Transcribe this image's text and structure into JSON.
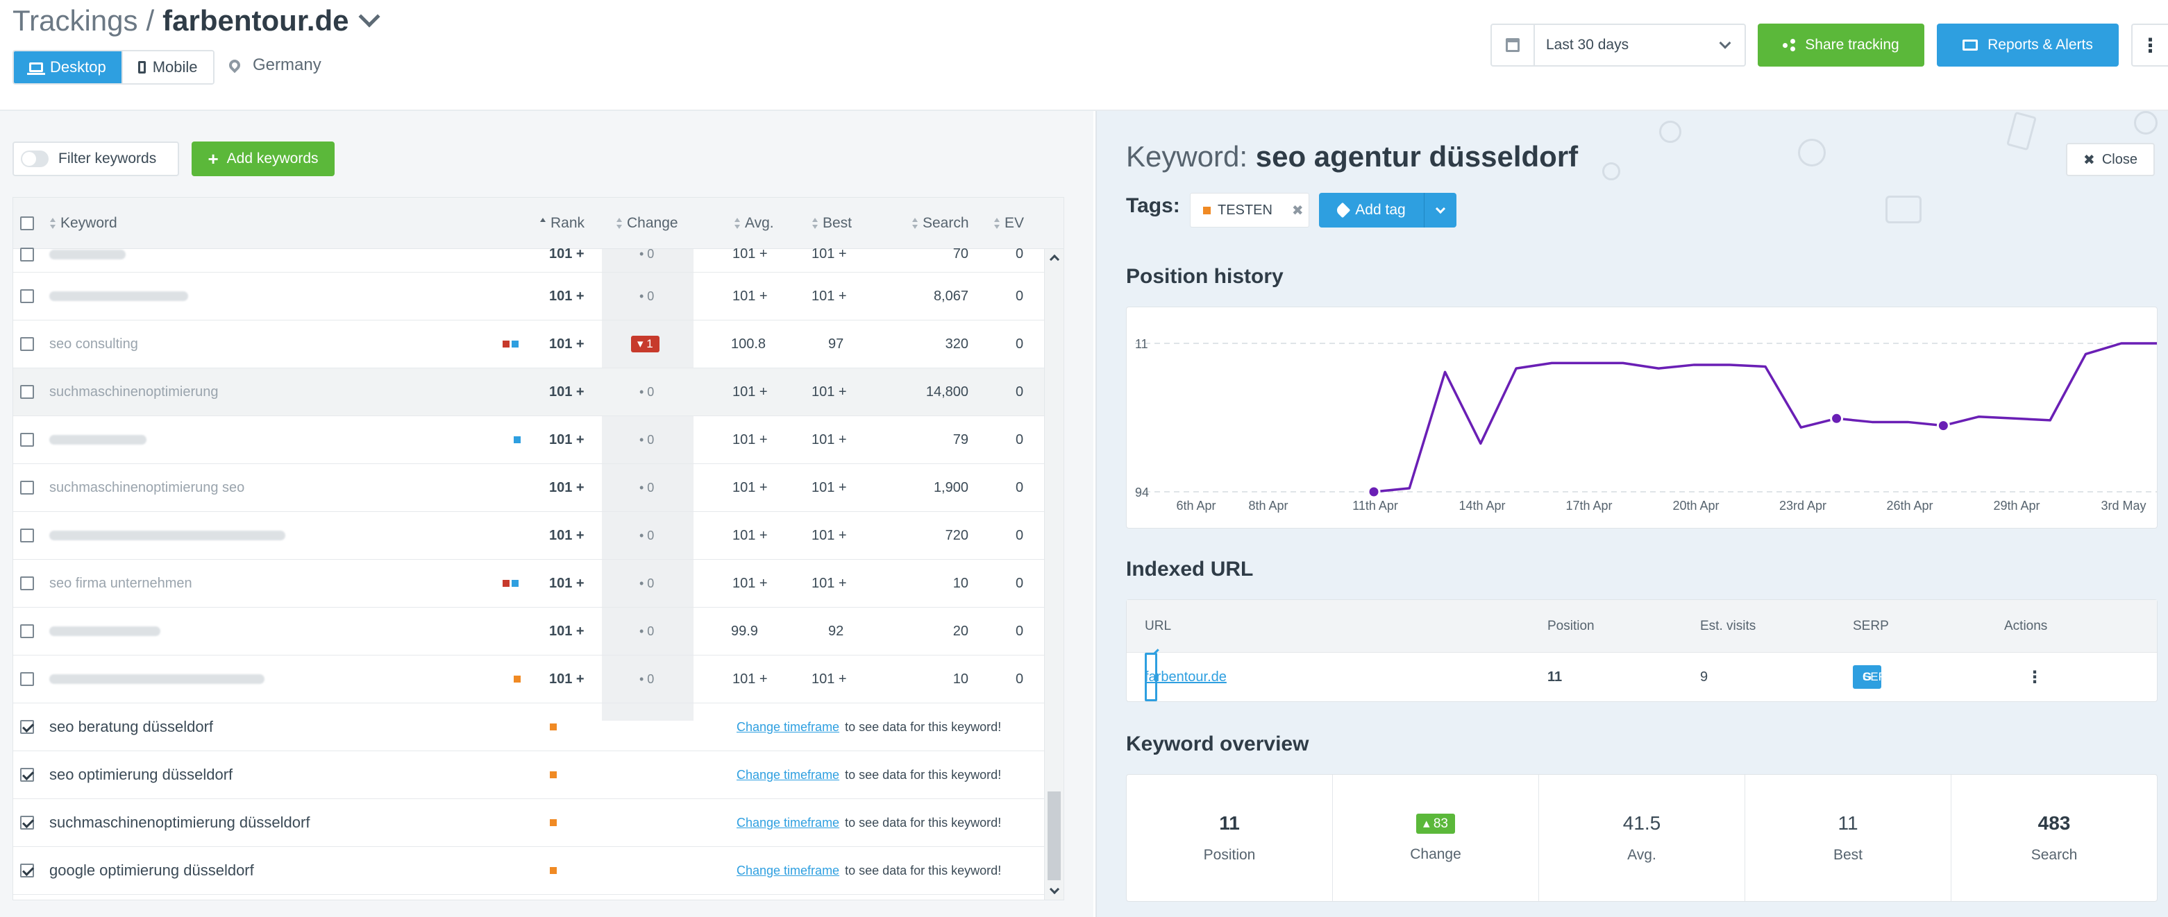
{
  "header": {
    "breadcrumb_root": "Trackings",
    "breadcrumb_sep": "/",
    "domain": "farbentour.de",
    "devices": [
      "Desktop",
      "Mobile"
    ],
    "location": "Germany",
    "date_range": "Last 30 days",
    "share_label": "Share tracking",
    "reports_label": "Reports & Alerts",
    "more_label": "⋮"
  },
  "toolbar": {
    "filter_label": "Filter keywords",
    "add_label": "Add keywords"
  },
  "table": {
    "columns": [
      "Keyword",
      "Rank",
      "Change",
      "Avg.",
      "Best",
      "Search",
      "EV"
    ],
    "rows": [
      {
        "keyword": "",
        "rank": "101 +",
        "change": "• 0",
        "avg": "101 +",
        "best": "101 +",
        "search": "70",
        "ev": "0"
      },
      {
        "keyword": "",
        "rank": "101 +",
        "change": "• 0",
        "avg": "101 +",
        "best": "101 +",
        "search": "8,067",
        "ev": "0"
      },
      {
        "keyword": "seo consulting",
        "rank": "101 +",
        "change": "▾ 1",
        "avg": "100.8",
        "best": "97",
        "search": "320",
        "ev": "0"
      },
      {
        "keyword": "suchmaschinenoptimierung",
        "rank": "101 +",
        "change": "• 0",
        "avg": "101 +",
        "best": "101 +",
        "search": "14,800",
        "ev": "0"
      },
      {
        "keyword": "",
        "rank": "101 +",
        "change": "• 0",
        "avg": "101 +",
        "best": "101 +",
        "search": "79",
        "ev": "0"
      },
      {
        "keyword": "suchmaschinenoptimierung seo",
        "rank": "101 +",
        "change": "• 0",
        "avg": "101 +",
        "best": "101 +",
        "search": "1,900",
        "ev": "0"
      },
      {
        "keyword": "",
        "rank": "101 +",
        "change": "• 0",
        "avg": "101 +",
        "best": "101 +",
        "search": "720",
        "ev": "0"
      },
      {
        "keyword": "seo firma unternehmen",
        "rank": "101 +",
        "change": "• 0",
        "avg": "101 +",
        "best": "101 +",
        "search": "10",
        "ev": "0"
      },
      {
        "keyword": "",
        "rank": "101 +",
        "change": "• 0",
        "avg": "99.9",
        "best": "92",
        "search": "20",
        "ev": "0"
      },
      {
        "keyword": "",
        "rank": "101 +",
        "change": "• 0",
        "avg": "101 +",
        "best": "101 +",
        "search": "10",
        "ev": "0"
      }
    ],
    "pending_rows": [
      {
        "keyword": "seo beratung düsseldorf"
      },
      {
        "keyword": "seo optimierung düsseldorf"
      },
      {
        "keyword": "suchmaschinenoptimierung düsseldorf"
      },
      {
        "keyword": "google optimierung düsseldorf"
      }
    ],
    "pending_link": "Change timeframe",
    "pending_text": "to see data for this keyword!"
  },
  "detail": {
    "title_prefix": "Keyword:",
    "keyword": "seo agentur düsseldorf",
    "close_label": "Close",
    "tags_label": "Tags:",
    "tag": "TESTEN",
    "add_tag_label": "Add tag",
    "position_history_title": "Position history",
    "indexed_url_title": "Indexed URL",
    "url_columns": [
      "URL",
      "Position",
      "Est. visits",
      "SERP",
      "Actions"
    ],
    "url_row": {
      "url": "farbentour.de",
      "position": "11",
      "visits": "9",
      "serp": "SERP",
      "actions": "⋮"
    },
    "overview_title": "Keyword overview",
    "overview": [
      {
        "value": "11",
        "label": "Position"
      },
      {
        "value": "▴ 83",
        "label": "Change"
      },
      {
        "value": "41.5",
        "label": "Avg."
      },
      {
        "value": "11",
        "label": "Best"
      },
      {
        "value": "483",
        "label": "Search"
      }
    ]
  },
  "chart_data": {
    "type": "line",
    "x_ticks": [
      "6th Apr",
      "8th Apr",
      "11th Apr",
      "14th Apr",
      "17th Apr",
      "20th Apr",
      "23rd Apr",
      "26th Apr",
      "29th Apr",
      "3rd May"
    ],
    "y_ticks": [
      "11",
      "94"
    ],
    "series": [
      {
        "values": [
          94,
          92,
          27,
          67,
          25,
          22,
          22,
          22,
          25,
          23,
          23,
          24,
          58,
          53,
          55,
          55,
          57,
          52,
          53,
          54,
          17,
          11,
          11
        ]
      }
    ],
    "markers": [
      0,
      13,
      16
    ],
    "color": "#6a1fb5",
    "grid": true
  }
}
